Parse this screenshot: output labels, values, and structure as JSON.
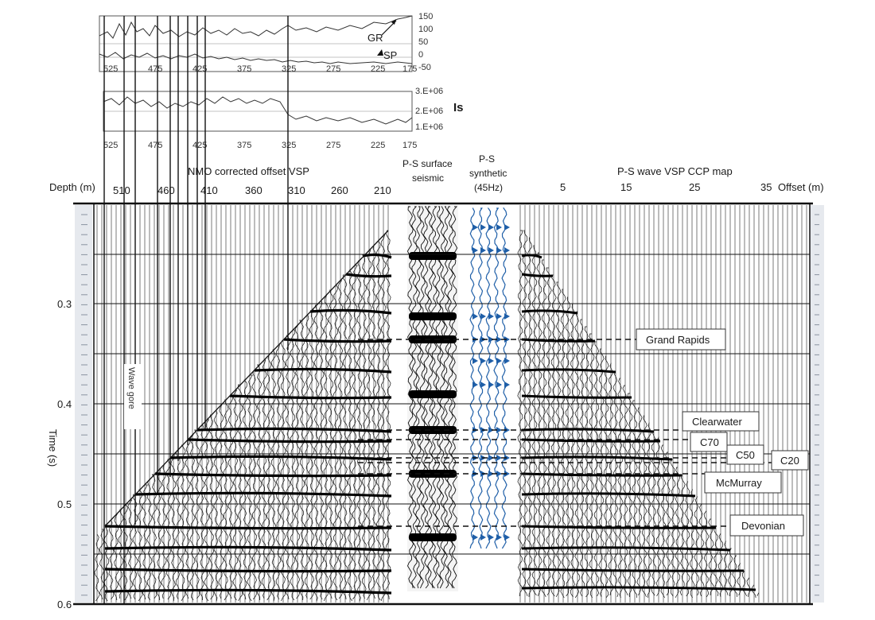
{
  "log_panel": {
    "upper_depth_ticks": [
      "525",
      "475",
      "425",
      "375",
      "325",
      "275",
      "225",
      "175"
    ],
    "right_ticks": [
      "150",
      "100",
      "50",
      "0",
      "-50"
    ],
    "gr_label": "GR",
    "sp_label": "SP",
    "lower_depth_ticks": [
      "525",
      "475",
      "425",
      "375",
      "325",
      "275",
      "225",
      "175"
    ],
    "is_ticks": [
      "3.E+06",
      "2.E+06",
      "1.E+06"
    ],
    "is_label": "Is"
  },
  "headers": {
    "depth_label": "Depth (m)",
    "nmo_title": "NMO corrected offset VSP",
    "depth_ticks": [
      "510",
      "460",
      "410",
      "360",
      "310",
      "260",
      "210"
    ],
    "surface_title_line1": "P-S surface",
    "surface_title_line2": "seismic",
    "synthetic_line1": "P-S",
    "synthetic_line2": "synthetic",
    "synthetic_line3": "(45Hz)",
    "ccp_title": "P-S wave VSP CCP map",
    "offset_ticks": [
      "5",
      "15",
      "25",
      "35"
    ],
    "offset_label": "Offset (m)"
  },
  "time_axis": {
    "label": "Time (s)",
    "ticks": [
      "0.3",
      "0.4",
      "0.5",
      "0.6"
    ]
  },
  "rotated_note": "Wave gore",
  "horizons": {
    "grand_rapids": "Grand Rapids",
    "clearwater": "Clearwater",
    "c70": "C70",
    "c50": "C50",
    "c20": "C20",
    "mcmurray": "McMurray",
    "devonian": "Devonian"
  },
  "colors": {
    "trace": "#111111",
    "synthetic": "#1f5fa8",
    "background": "#ffffff"
  }
}
